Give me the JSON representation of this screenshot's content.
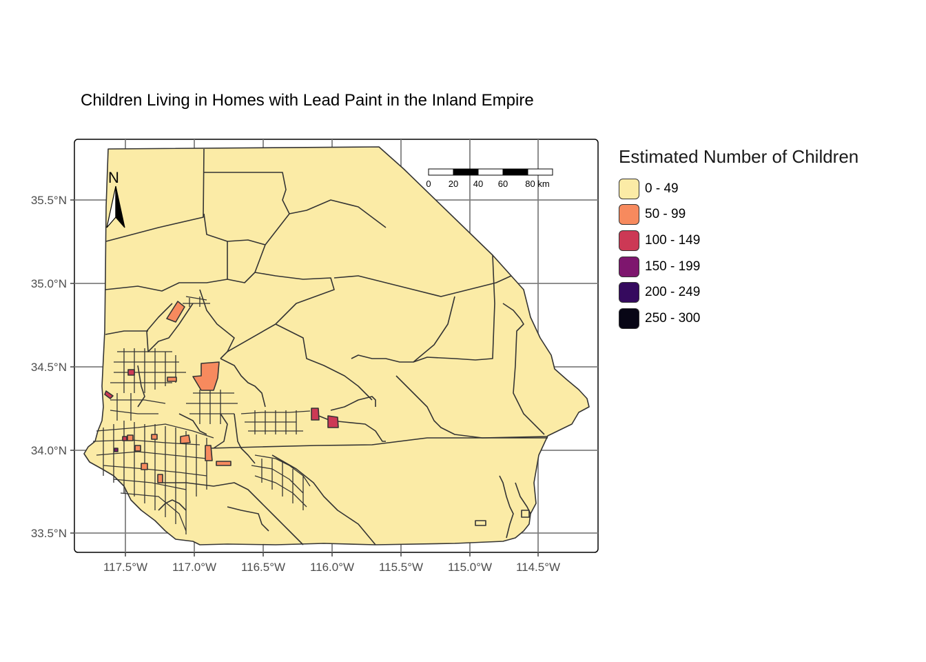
{
  "title": "Children Living in Homes with Lead Paint in the Inland Empire",
  "axes": {
    "x_ticks": [
      "117.5°W",
      "117.0°W",
      "116.5°W",
      "116.0°W",
      "115.5°W",
      "115.0°W",
      "114.5°W"
    ],
    "y_ticks": [
      "35.5°N",
      "35.0°N",
      "34.5°N",
      "34.0°N",
      "33.5°N"
    ]
  },
  "north_arrow": {
    "label": "N"
  },
  "scale_bar": {
    "labels": [
      "0",
      "20",
      "40",
      "60",
      "80 km"
    ]
  },
  "legend": {
    "title": "Estimated Number of Children",
    "items": [
      {
        "label": "0 - 49",
        "color": "#FBEBA6"
      },
      {
        "label": "50 - 99",
        "color": "#F78A5E"
      },
      {
        "label": "100 - 149",
        "color": "#CC3955"
      },
      {
        "label": "150 - 199",
        "color": "#7E166E"
      },
      {
        "label": "200 - 249",
        "color": "#350A5E"
      },
      {
        "label": "250 - 300",
        "color": "#080616"
      }
    ]
  },
  "colors": {
    "base_fill": "#FBEBA6",
    "medium_fill": "#F78A5E",
    "high_fill": "#CC3955",
    "boundary": "#333333",
    "grid": "#7f7f7f"
  }
}
